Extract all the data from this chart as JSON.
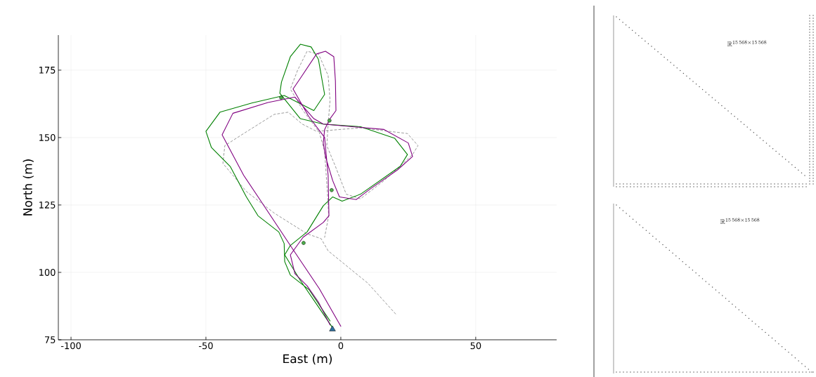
{
  "chart_data": [
    {
      "type": "line",
      "xlabel": "East (m)",
      "ylabel": "North (m)",
      "xlim": [
        -104.7,
        80
      ],
      "ylim": [
        75,
        188
      ],
      "xticks": [
        -100,
        -50,
        0,
        50
      ],
      "yticks": [
        75,
        100,
        125,
        150,
        175
      ],
      "grid": true,
      "series": [
        {
          "type": "line",
          "color": "#808080",
          "line_style": "dashed",
          "x": [
            20.3,
            10,
            -4.7,
            -7.3,
            -12.5,
            -24.7,
            -35,
            -40,
            -43.7,
            -43,
            -36,
            -24.7,
            -19.5,
            -14.3,
            -9,
            7.3,
            24.7,
            28.6,
            26.6,
            16,
            7.3,
            2,
            -2,
            -5.2,
            -4.7,
            -4,
            -4.7,
            -8.3,
            -12.5,
            -16,
            -18.7,
            -14,
            -8,
            -6,
            -5,
            -4.5,
            -6
          ],
          "values": [
            84.6,
            96,
            108,
            112.5,
            114.3,
            122,
            130,
            136,
            140.4,
            147,
            151.5,
            158.6,
            159.4,
            155,
            152.3,
            153.6,
            151.5,
            147,
            143.7,
            134,
            127.3,
            129,
            139.3,
            147,
            155,
            163.8,
            173,
            181,
            182,
            175,
            168,
            160,
            152,
            145,
            130,
            121,
            113
          ]
        },
        {
          "type": "line",
          "color": "#008000",
          "line_style": "solid",
          "x": [
            -3,
            -8.3,
            -15,
            -20.8,
            -18.7,
            -12.5,
            -6.5,
            -3,
            0.5,
            7.3,
            22,
            24.7,
            20,
            7.3,
            -6.5,
            -15,
            -22.6,
            -22,
            -18.7,
            -15,
            -11,
            -8.3,
            -6,
            -10,
            -21,
            -33,
            -44.8,
            -50,
            -48,
            -41,
            -35,
            -30.7,
            -23,
            -21,
            -20.8,
            -18.7,
            -11.7,
            -4
          ],
          "values": [
            79.4,
            87.2,
            97,
            106.5,
            110,
            115,
            124.7,
            128,
            126.4,
            129,
            139.3,
            143.7,
            149.7,
            154,
            155,
            157,
            166.4,
            170.6,
            180,
            184.6,
            183.6,
            179,
            166,
            160,
            165.6,
            162.8,
            159.4,
            152.3,
            146.4,
            139.3,
            128,
            121,
            115,
            110.7,
            104,
            99,
            93.5,
            82
          ]
        },
        {
          "type": "line",
          "color": "#800080",
          "line_style": "solid",
          "x": [
            0,
            -8,
            -17.4,
            -30,
            -36,
            -44,
            -40,
            -27,
            -17,
            -10,
            -6.5,
            16,
            25,
            26.6,
            21,
            11,
            5.7,
            -0.5,
            -3,
            -5.7,
            -6.5,
            -6,
            -4,
            -1.8,
            -2,
            -2.6,
            -5.7,
            -9,
            -15,
            -17.7,
            -12,
            -6,
            -4.7,
            -4.4,
            -6.5,
            -14,
            -18.7,
            -17,
            -12.5,
            -8.3,
            -4
          ],
          "values": [
            80,
            94,
            108,
            127,
            136,
            151,
            159,
            163,
            165,
            157,
            155,
            153,
            148,
            143,
            138,
            131,
            127,
            128,
            134,
            143,
            148,
            153,
            157,
            160,
            171,
            180,
            182,
            181,
            172,
            168,
            158,
            150,
            136,
            121,
            118.5,
            113,
            106.5,
            99.5,
            95,
            89,
            80.5
          ]
        },
        {
          "type": "scatter",
          "color": "#4daf4a",
          "marker": "circle",
          "x": [
            -22.1,
            -4.2,
            -3.4,
            -13.8
          ],
          "values": [
            164.8,
            156.3,
            130.5,
            110.9
          ]
        },
        {
          "type": "scatter",
          "color": "#2e6f9e",
          "marker": "triangle",
          "x": [
            -3.1
          ],
          "values": [
            78.9
          ]
        }
      ]
    },
    {
      "type": "other",
      "annotations": [
        "\\mathbb{R}^{15\\,568\\times 15\\,568}"
      ]
    },
    {
      "type": "other",
      "annotations": [
        "\\mathbb{R}^{15\\,568\\times 15\\,568}"
      ]
    }
  ]
}
